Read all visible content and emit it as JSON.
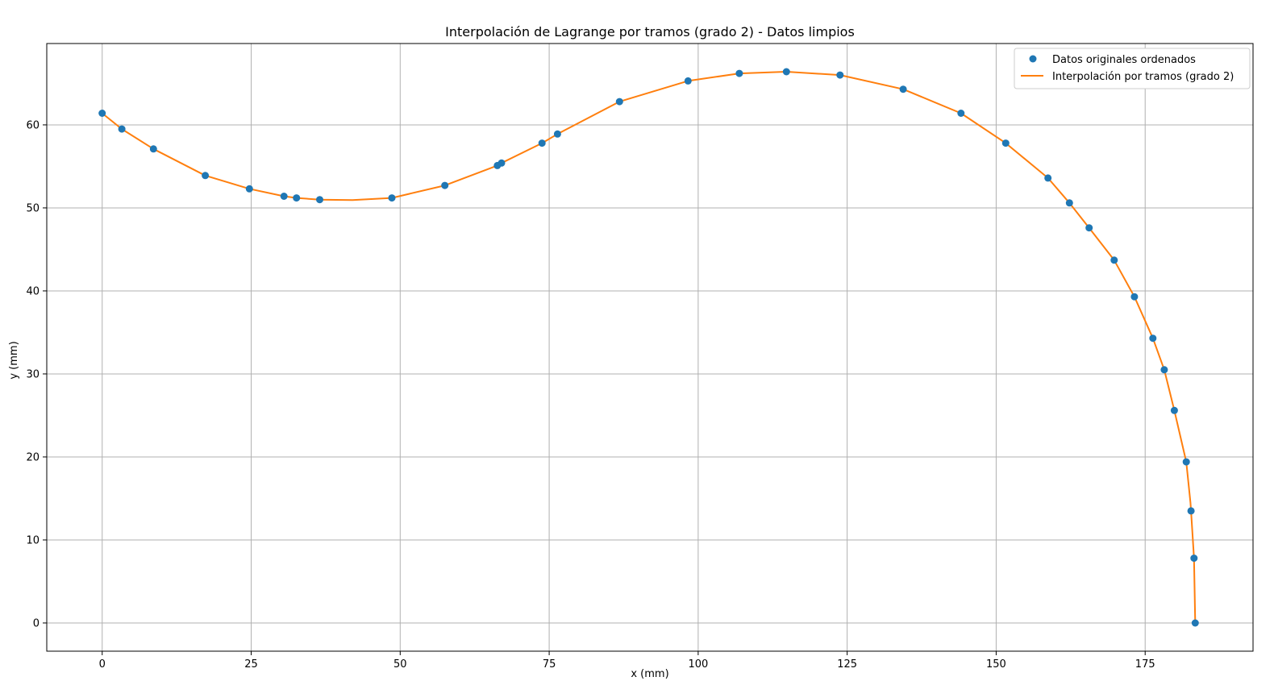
{
  "chart_data": {
    "type": "line",
    "title": "Interpolación de Lagrange por tramos (grado 2) - Datos limpios",
    "xlabel": "x (mm)",
    "ylabel": "y (mm)",
    "xlim": [
      -9.3,
      193.1
    ],
    "ylim": [
      -3.4,
      69.8
    ],
    "xticks": [
      0,
      25,
      50,
      75,
      100,
      125,
      150,
      175
    ],
    "yticks": [
      0,
      10,
      20,
      30,
      40,
      50,
      60
    ],
    "grid": true,
    "legend_position": "upper right",
    "series": [
      {
        "name": "Datos originales ordenados",
        "kind": "scatter",
        "color": "#1f77b4",
        "points": [
          [
            0.0,
            61.4
          ],
          [
            3.3,
            59.5
          ],
          [
            8.6,
            57.1
          ],
          [
            17.3,
            53.9
          ],
          [
            24.7,
            52.3
          ],
          [
            30.5,
            51.4
          ],
          [
            32.6,
            51.2
          ],
          [
            36.5,
            51.0
          ],
          [
            48.6,
            51.2
          ],
          [
            57.5,
            52.7
          ],
          [
            66.3,
            55.1
          ],
          [
            67.0,
            55.4
          ],
          [
            73.8,
            57.8
          ],
          [
            76.4,
            58.9
          ],
          [
            86.8,
            62.8
          ],
          [
            98.3,
            65.3
          ],
          [
            106.9,
            66.2
          ],
          [
            114.8,
            66.4
          ],
          [
            123.8,
            66.0
          ],
          [
            134.4,
            64.3
          ],
          [
            144.1,
            61.4
          ],
          [
            151.6,
            57.8
          ],
          [
            158.7,
            53.6
          ],
          [
            162.3,
            50.6
          ],
          [
            165.6,
            47.6
          ],
          [
            169.8,
            43.7
          ],
          [
            173.2,
            39.3
          ],
          [
            176.3,
            34.3
          ],
          [
            178.2,
            30.5
          ],
          [
            179.9,
            25.6
          ],
          [
            181.9,
            19.4
          ],
          [
            182.7,
            13.5
          ],
          [
            183.2,
            7.8
          ],
          [
            183.4,
            0.0
          ]
        ]
      },
      {
        "name": "Interpolación por tramos (grado 2)",
        "kind": "line",
        "color": "#ff7f0e",
        "points": [
          [
            0.0,
            61.4
          ],
          [
            3.3,
            59.5
          ],
          [
            8.6,
            57.1
          ],
          [
            17.3,
            53.9
          ],
          [
            24.7,
            52.3
          ],
          [
            30.5,
            51.4
          ],
          [
            32.6,
            51.2
          ],
          [
            36.5,
            51.0
          ],
          [
            42.0,
            50.95
          ],
          [
            48.6,
            51.2
          ],
          [
            57.5,
            52.7
          ],
          [
            66.3,
            55.1
          ],
          [
            67.0,
            55.4
          ],
          [
            73.8,
            57.8
          ],
          [
            76.4,
            58.9
          ],
          [
            86.8,
            62.8
          ],
          [
            98.3,
            65.3
          ],
          [
            106.9,
            66.2
          ],
          [
            114.8,
            66.4
          ],
          [
            123.8,
            66.0
          ],
          [
            134.4,
            64.3
          ],
          [
            144.1,
            61.4
          ],
          [
            151.6,
            57.8
          ],
          [
            158.7,
            53.6
          ],
          [
            162.3,
            50.6
          ],
          [
            165.6,
            47.6
          ],
          [
            169.8,
            43.7
          ],
          [
            173.2,
            39.3
          ],
          [
            176.3,
            34.3
          ],
          [
            178.2,
            30.5
          ],
          [
            179.9,
            25.6
          ],
          [
            181.9,
            19.4
          ],
          [
            182.6,
            14.5
          ],
          [
            182.7,
            13.5
          ],
          [
            183.2,
            7.8
          ],
          [
            183.4,
            0.0
          ]
        ]
      }
    ]
  }
}
